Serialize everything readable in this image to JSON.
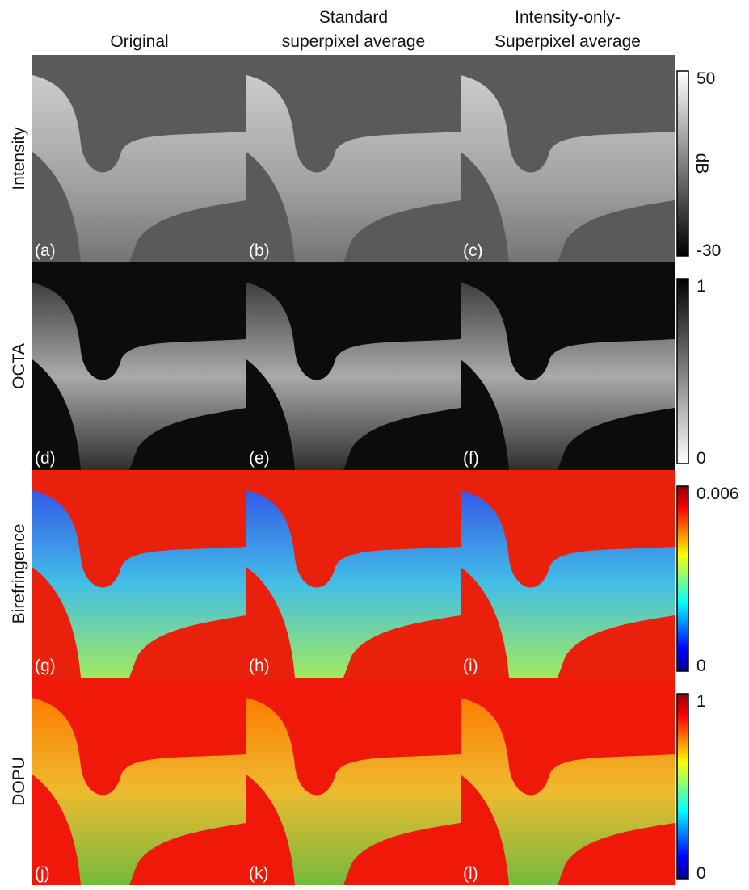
{
  "columns": [
    {
      "lines": [
        "Original"
      ]
    },
    {
      "lines": [
        "Standard",
        "superpixel average"
      ]
    },
    {
      "lines": [
        "Intensity-only-",
        "Superpixel average"
      ]
    }
  ],
  "rows": [
    {
      "label": "Intensity",
      "panels": [
        "(a)",
        "(b)",
        "(c)"
      ],
      "colorbar": {
        "max": 50,
        "min": -30,
        "unit": "dB"
      }
    },
    {
      "label": "OCTA",
      "panels": [
        "(d)",
        "(e)",
        "(f)"
      ],
      "colorbar": {
        "max": 1,
        "min": 0
      }
    },
    {
      "label": "Birefringence",
      "panels": [
        "(g)",
        "(h)",
        "(i)"
      ],
      "colorbar": {
        "max": 0.006,
        "min": 0
      }
    },
    {
      "label": "DOPU",
      "panels": [
        "(j)",
        "(k)",
        "(l)"
      ],
      "colorbar": {
        "max": 1,
        "min": 0
      }
    }
  ]
}
